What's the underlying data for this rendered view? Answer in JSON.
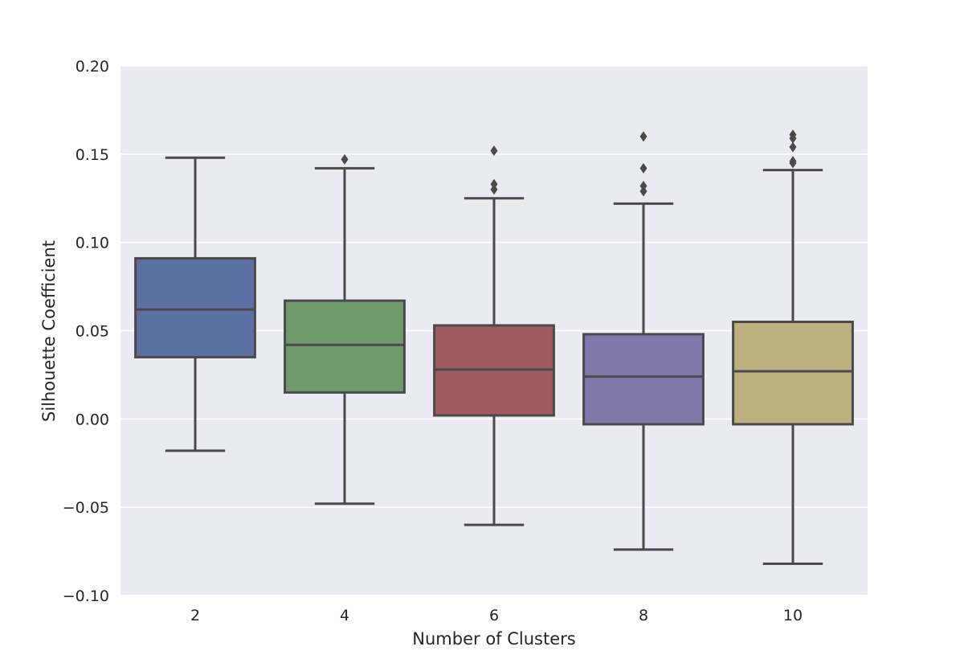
{
  "chart_data": {
    "type": "box",
    "xlabel": "Number of Clusters",
    "ylabel": "Silhouette Coefficient",
    "ylim": [
      -0.1,
      0.2
    ],
    "yticks": [
      -0.1,
      -0.05,
      0.0,
      0.05,
      0.1,
      0.15,
      0.2
    ],
    "ytick_labels": [
      "−0.10",
      "−0.05",
      "0.00",
      "0.05",
      "0.10",
      "0.15",
      "0.20"
    ],
    "grid": true,
    "categories": [
      "2",
      "4",
      "6",
      "8",
      "10"
    ],
    "boxes": [
      {
        "category": "2",
        "whisker_low": -0.018,
        "q1": 0.035,
        "median": 0.062,
        "q3": 0.091,
        "whisker_high": 0.148,
        "outliers": [],
        "color": "#5b6fa0"
      },
      {
        "category": "4",
        "whisker_low": -0.048,
        "q1": 0.015,
        "median": 0.042,
        "q3": 0.067,
        "whisker_high": 0.142,
        "outliers": [
          0.147
        ],
        "color": "#6f9b6c"
      },
      {
        "category": "6",
        "whisker_low": -0.06,
        "q1": 0.002,
        "median": 0.028,
        "q3": 0.053,
        "whisker_high": 0.125,
        "outliers": [
          0.13,
          0.133,
          0.152
        ],
        "color": "#a05b5e"
      },
      {
        "category": "8",
        "whisker_low": -0.074,
        "q1": -0.003,
        "median": 0.024,
        "q3": 0.048,
        "whisker_high": 0.122,
        "outliers": [
          0.129,
          0.132,
          0.142,
          0.16
        ],
        "color": "#8178aa"
      },
      {
        "category": "10",
        "whisker_low": -0.082,
        "q1": -0.003,
        "median": 0.027,
        "q3": 0.055,
        "whisker_high": 0.141,
        "outliers": [
          0.145,
          0.146,
          0.154,
          0.159,
          0.161
        ],
        "color": "#bcb07f"
      }
    ],
    "colors": {
      "plot_background": "#eaeaf2",
      "grid": "#ffffff",
      "line": "#4a4a4a"
    }
  }
}
